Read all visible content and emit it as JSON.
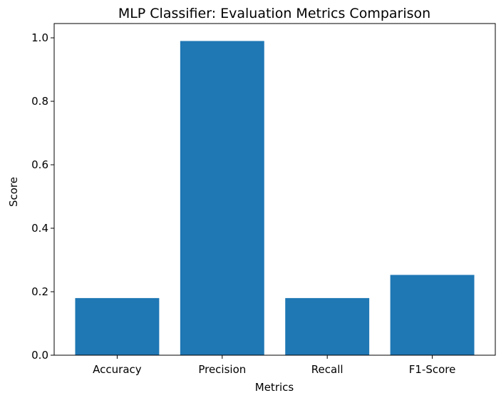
{
  "chart_data": {
    "type": "bar",
    "title": "MLP Classifier: Evaluation Metrics Comparison",
    "xlabel": "Metrics",
    "ylabel": "Score",
    "categories": [
      "Accuracy",
      "Precision",
      "Recall",
      "F1-Score"
    ],
    "values": [
      0.18,
      0.99,
      0.18,
      0.253
    ],
    "ylim": [
      0,
      1.045
    ],
    "yticks": [
      "0.0",
      "0.2",
      "0.4",
      "0.6",
      "0.8",
      "1.0"
    ],
    "ytick_values": [
      0,
      0.2,
      0.4,
      0.6,
      0.8,
      1.0
    ],
    "bar_color": "#1f77b4",
    "grid": false,
    "legend": "none"
  }
}
